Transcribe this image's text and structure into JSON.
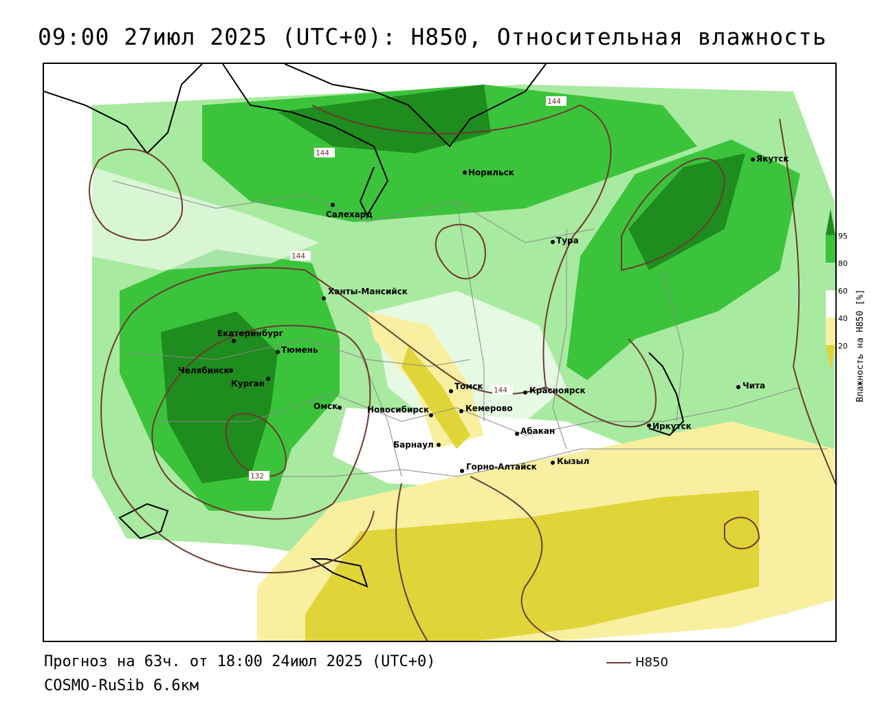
{
  "title": "09:00 27июл 2025 (UTC+0): H850, Относительная влажность",
  "footer": {
    "forecast": "Прогноз на 63ч. от 18:00 24июл 2025 (UTC+0)",
    "model": "COSMO-RuSib 6.6км"
  },
  "legend": {
    "line_label": "H850"
  },
  "scale": {
    "title": "Влажность на H850 [%]",
    "ticks": [
      "95",
      "80",
      "60",
      "40",
      "20"
    ],
    "colors": {
      "c95": "#1e8c1e",
      "c80": "#3cc33c",
      "c60": "#a8eaa0",
      "c40": "#ffffff",
      "c20": "#f8f0a0",
      "c0": "#e0d438"
    }
  },
  "colors": {
    "contour": "#6b3a2e",
    "coast": "#000000",
    "border": "#888888"
  },
  "contour_labels": [
    "144",
    "144",
    "144",
    "144",
    "132"
  ],
  "cities": [
    {
      "name": "Норильск"
    },
    {
      "name": "Салехард"
    },
    {
      "name": "Тура"
    },
    {
      "name": "Якутск"
    },
    {
      "name": "Ханты-Мансийск"
    },
    {
      "name": "Екатеринбург"
    },
    {
      "name": "Тюмень"
    },
    {
      "name": "Челябинск"
    },
    {
      "name": "Курган"
    },
    {
      "name": "Омск"
    },
    {
      "name": "Новосибирск"
    },
    {
      "name": "Томск"
    },
    {
      "name": "Кемерово"
    },
    {
      "name": "Красноярск"
    },
    {
      "name": "Барнаул"
    },
    {
      "name": "Абакан"
    },
    {
      "name": "Горно-Алтайск"
    },
    {
      "name": "Кызыл"
    },
    {
      "name": "Иркутск"
    },
    {
      "name": "Чита"
    }
  ]
}
